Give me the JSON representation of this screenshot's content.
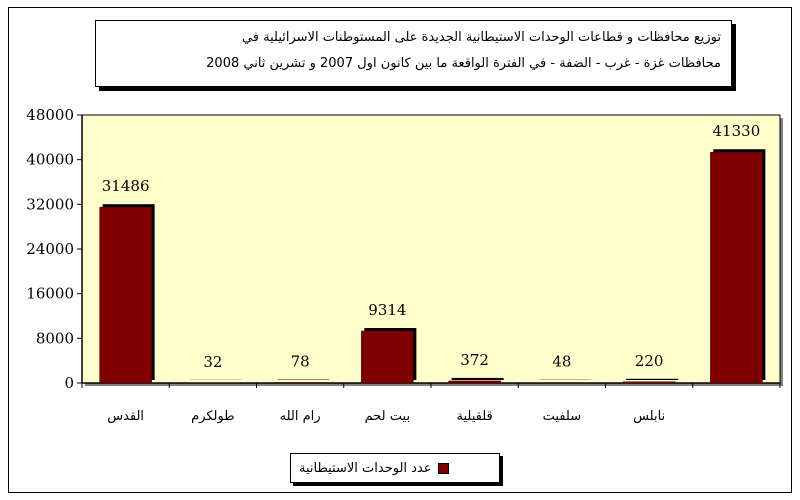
{
  "title": {
    "line1": "توزيع محافظات و قطاعات الوحدات الاستيطانية الجديدة على المستوطنات الاسرائيلية في",
    "line2": "محافظات غزة - غرب - الضفة - في الفترة الواقعة ما بين كانون اول 2007 و تشرين ثاني 2008"
  },
  "chart_data": {
    "type": "bar",
    "categories": [
      "القدس",
      "طولكرم",
      "رام الله",
      "بيت لحم",
      "قلقيلية",
      "سلفيت",
      "نابلس",
      ""
    ],
    "series": [
      {
        "name": "عدد الوحدات الاستيطانية",
        "values": [
          31486,
          32,
          78,
          9314,
          372,
          48,
          220,
          41330
        ]
      }
    ],
    "data_labels": [
      "31486",
      "32",
      "78",
      "9314",
      "372",
      "48",
      "220",
      "41330"
    ],
    "y_ticks": [
      "0",
      "8000",
      "16000",
      "24000",
      "32000",
      "40000",
      "48000"
    ],
    "ylim": [
      0,
      48000
    ],
    "legend_position": "bottom",
    "colors": {
      "bar": "#800000",
      "plot_bg": "#ffffcc",
      "bar_shadow": "#000000"
    }
  }
}
